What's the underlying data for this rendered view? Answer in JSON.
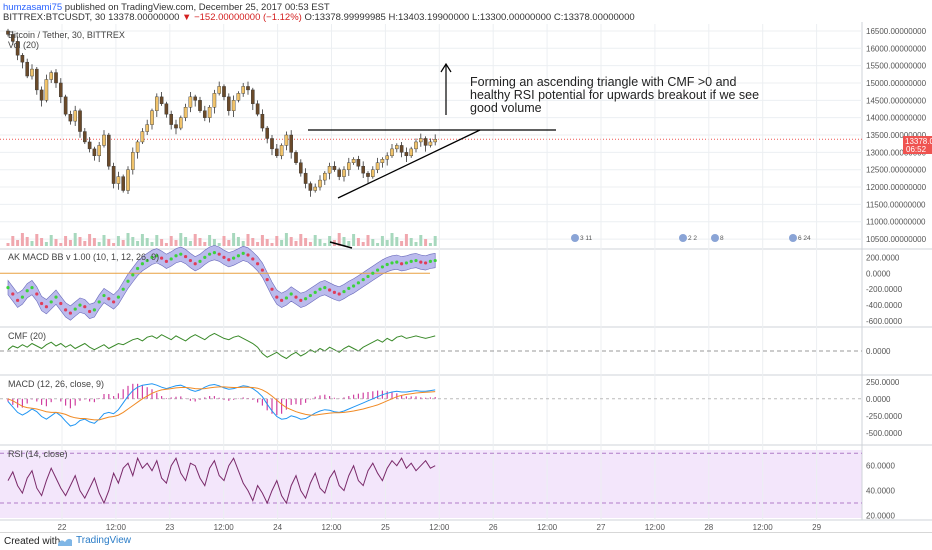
{
  "header": {
    "author": "humzasami75",
    "published": "published on TradingView.com, December 25, 2017 00:53 EST",
    "symbol_line": "BITTREX:BTCUSDT, 30",
    "last_price": "13378.00000000",
    "change": "▼ −152.00000000 (−1.12%)",
    "ohlc": "O:13378.99999985 H:13403.19900000 L:13300.00000000 C:13378.00000000"
  },
  "footer": {
    "created_with": "Created with",
    "brand": "TradingView"
  },
  "colors": {
    "up": "#53b987",
    "down": "#eb4d5c",
    "wick": "#333333",
    "grid": "#eceff2",
    "rsi_bg": "#f3e6fb"
  },
  "chart_data": [
    {
      "type": "candlestick",
      "title": "Bitcoin / Tether, 30, BITTREX",
      "indicator_label": "Vol (20)",
      "price_ticks": [
        "10500.00000000",
        "11000.00000000",
        "11500.00000000",
        "12000.00000000",
        "12500.00000000",
        "13000.00000000",
        "13500.00000000",
        "14000.00000000",
        "14500.00000000",
        "15000.00000000",
        "15500.00000000",
        "16000.00000000",
        "16500.00000000"
      ],
      "last_price_tag": "13378.00000000",
      "countdown_tag": "06:52",
      "close_series": [
        16400,
        16200,
        15800,
        15600,
        15200,
        15400,
        14800,
        14500,
        15100,
        15300,
        15000,
        14600,
        14100,
        13900,
        14200,
        13600,
        13300,
        13100,
        12900,
        13200,
        13500,
        12600,
        12100,
        12300,
        11900,
        12500,
        13000,
        13300,
        13600,
        13800,
        14200,
        14600,
        14400,
        14100,
        13800,
        13700,
        14000,
        14300,
        14600,
        14500,
        14200,
        14000,
        14300,
        14700,
        14900,
        14600,
        14200,
        14500,
        14700,
        14900,
        14800,
        14400,
        14100,
        13700,
        13400,
        13100,
        12900,
        13200,
        13500,
        13000,
        12700,
        12400,
        12100,
        11900,
        12000,
        12200,
        12400,
        12600,
        12500,
        12300,
        12500,
        12700,
        12800,
        12600,
        12400,
        12300,
        12500,
        12700,
        12800,
        12900,
        13100,
        13200,
        13000,
        12900,
        13100,
        13300,
        13400,
        13200,
        13300,
        13378
      ],
      "annotation": "Forming an ascending triangle with CMF >0 and\nhealthy RSI potential for upwards breakout if we see\ngood volume",
      "event_badges": [
        "3 11",
        "2 2",
        "8",
        "6 24"
      ],
      "x_ticks": [
        "22",
        "12:00",
        "23",
        "12:00",
        "24",
        "12:00",
        "25",
        "12:00",
        "26",
        "12:00",
        "27",
        "12:00",
        "28",
        "12:00",
        "29"
      ]
    },
    {
      "type": "line",
      "title": "AK MACD BB v 1.00 (10, 1, 12, 26, 9)",
      "y_ticks": [
        "200.0000",
        "0.0000",
        "-200.0000",
        "-400.0000",
        "-600.0000"
      ],
      "ylim": [
        -650,
        280
      ],
      "series": [
        {
          "values": [
            -180,
            -260,
            -340,
            -300,
            -220,
            -180,
            -260,
            -380,
            -420,
            -360,
            -300,
            -380,
            -460,
            -500,
            -450,
            -400,
            -420,
            -480,
            -460,
            -360,
            -280,
            -320,
            -360,
            -300,
            -200,
            -100,
            -20,
            60,
            120,
            160,
            200,
            220,
            190,
            150,
            180,
            220,
            240,
            210,
            160,
            120,
            150,
            200,
            240,
            260,
            240,
            200,
            170,
            190,
            220,
            250,
            230,
            180,
            120,
            40,
            -80,
            -200,
            -300,
            -340,
            -310,
            -260,
            -300,
            -340,
            -320,
            -280,
            -240,
            -200,
            -180,
            -210,
            -240,
            -260,
            -230,
            -190,
            -160,
            -120,
            -80,
            -40,
            0,
            40,
            80,
            110,
            130,
            140,
            120,
            130,
            150,
            160,
            140,
            130,
            150,
            160
          ]
        }
      ]
    },
    {
      "type": "line",
      "title": "CMF (20)",
      "y_ticks": [
        "0.0000"
      ],
      "ylim": [
        -0.35,
        0.35
      ],
      "series": [
        {
          "values": [
            0.02,
            0.08,
            0.05,
            0.1,
            0.06,
            0.12,
            0.08,
            0.04,
            0.1,
            0.14,
            0.08,
            0.12,
            0.06,
            0.1,
            0.04,
            0.08,
            0.12,
            0.06,
            0.02,
            0.06,
            0.1,
            0.04,
            0.08,
            0.12,
            0.1,
            0.14,
            0.18,
            0.2,
            0.16,
            0.22,
            0.24,
            0.2,
            0.26,
            0.22,
            0.18,
            0.24,
            0.2,
            0.16,
            0.22,
            0.26,
            0.22,
            0.18,
            0.24,
            0.28,
            0.24,
            0.2,
            0.18,
            0.22,
            0.24,
            0.2,
            0.16,
            0.12,
            0.06,
            -0.04,
            -0.1,
            -0.06,
            -0.02,
            -0.08,
            -0.12,
            -0.06,
            -0.02,
            -0.08,
            -0.04,
            0.02,
            -0.02,
            0.04,
            0.0,
            0.06,
            0.02,
            -0.02,
            0.04,
            0.08,
            0.04,
            0.0,
            0.06,
            0.1,
            0.14,
            0.18,
            0.14,
            0.2,
            0.16,
            0.22,
            0.24,
            0.2,
            0.22,
            0.24,
            0.22,
            0.2,
            0.22,
            0.24
          ]
        }
      ]
    },
    {
      "type": "line",
      "title": "MACD (12, 26, close, 9)",
      "y_ticks": [
        "250.0000",
        "0.0000",
        "-250.0000",
        "-500.0000"
      ],
      "ylim": [
        -650,
        320
      ],
      "series": [
        {
          "values": [
            -40,
            -120,
            -200,
            -240,
            -200,
            -150,
            -190,
            -260,
            -300,
            -250,
            -200,
            -250,
            -330,
            -400,
            -380,
            -320,
            -300,
            -340,
            -360,
            -300,
            -220,
            -200,
            -220,
            -160,
            -60,
            40,
            120,
            170,
            200,
            210,
            220,
            200,
            170,
            150,
            170,
            190,
            200,
            170,
            130,
            110,
            130,
            170,
            200,
            210,
            190,
            160,
            140,
            150,
            170,
            190,
            180,
            150,
            100,
            30,
            -80,
            -180,
            -260,
            -300,
            -290,
            -250,
            -270,
            -300,
            -290,
            -250,
            -210,
            -180,
            -160,
            -170,
            -190,
            -200,
            -180,
            -150,
            -120,
            -90,
            -60,
            -30,
            0,
            30,
            60,
            80,
            100,
            110,
            100,
            100,
            110,
            120,
            110,
            110,
            120,
            130
          ]
        },
        {
          "values": [
            0,
            -30,
            -70,
            -110,
            -130,
            -140,
            -150,
            -170,
            -190,
            -200,
            -200,
            -210,
            -230,
            -260,
            -280,
            -290,
            -290,
            -300,
            -310,
            -310,
            -290,
            -270,
            -260,
            -240,
            -200,
            -150,
            -100,
            -50,
            0,
            40,
            80,
            110,
            130,
            140,
            150,
            160,
            165,
            165,
            160,
            150,
            145,
            150,
            160,
            170,
            175,
            175,
            170,
            165,
            165,
            170,
            170,
            165,
            155,
            130,
            90,
            40,
            -20,
            -80,
            -130,
            -160,
            -190,
            -210,
            -230,
            -240,
            -240,
            -230,
            -220,
            -210,
            -205,
            -205,
            -200,
            -190,
            -180,
            -165,
            -150,
            -130,
            -110,
            -90,
            -60,
            -30,
            0,
            30,
            50,
            65,
            75,
            85,
            90,
            95,
            100,
            105
          ]
        }
      ]
    },
    {
      "type": "line",
      "title": "RSI (14, close)",
      "y_ticks": [
        "60.0000",
        "40.0000",
        "20.0000"
      ],
      "ylim": [
        18,
        75
      ],
      "series": [
        {
          "values": [
            48,
            55,
            44,
            38,
            50,
            56,
            42,
            36,
            48,
            58,
            50,
            42,
            36,
            44,
            52,
            40,
            34,
            42,
            50,
            38,
            30,
            40,
            54,
            46,
            58,
            62,
            52,
            66,
            58,
            62,
            56,
            64,
            50,
            46,
            60,
            66,
            54,
            48,
            62,
            60,
            50,
            44,
            58,
            64,
            52,
            48,
            60,
            66,
            56,
            46,
            40,
            32,
            44,
            38,
            30,
            40,
            48,
            36,
            30,
            44,
            52,
            40,
            34,
            46,
            54,
            42,
            38,
            50,
            56,
            44,
            40,
            52,
            60,
            48,
            44,
            56,
            62,
            54,
            48,
            58,
            64,
            60,
            66,
            58,
            62,
            56,
            60,
            64,
            58,
            60
          ]
        }
      ]
    }
  ]
}
